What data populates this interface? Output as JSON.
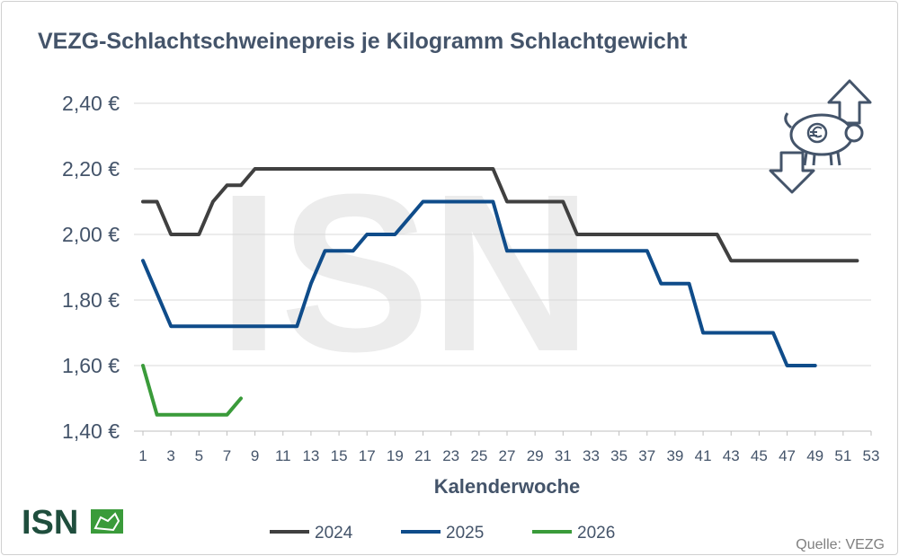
{
  "brand": {
    "logo_text": "ISN",
    "watermark_text": "ISN",
    "colors": {
      "logo": "#1f4e3d",
      "logo_green": "#3a9b3a"
    }
  },
  "icons": {
    "corner": "pig-euro-price-arrows-icon"
  },
  "source": "Quelle: VEZG",
  "chart_data": {
    "type": "line",
    "title": "VEZG-Schlachtschweinepreis je Kilogramm Schlachtgewicht",
    "xlabel": "Kalenderwoche",
    "ylabel": "",
    "xlim": [
      1,
      53
    ],
    "ylim": [
      1.4,
      2.4
    ],
    "x_ticks": [
      1,
      3,
      5,
      7,
      9,
      11,
      13,
      15,
      17,
      19,
      21,
      23,
      25,
      27,
      29,
      31,
      33,
      35,
      37,
      39,
      41,
      43,
      45,
      47,
      49,
      51,
      53
    ],
    "y_ticks": [
      1.4,
      1.6,
      1.8,
      2.0,
      2.2,
      2.4
    ],
    "y_tick_labels": [
      "1,40 €",
      "1,60 €",
      "1,80 €",
      "2,00 €",
      "2,20 €",
      "2,40 €"
    ],
    "grid": "horizontal",
    "legend_position": "bottom",
    "series": [
      {
        "name": "2024",
        "color": "#404040",
        "x": [
          1,
          2,
          3,
          4,
          5,
          6,
          7,
          8,
          9,
          26,
          27,
          31,
          32,
          42,
          43,
          52
        ],
        "y": [
          2.1,
          2.1,
          2.0,
          2.0,
          2.0,
          2.1,
          2.15,
          2.15,
          2.2,
          2.2,
          2.1,
          2.1,
          2.0,
          2.0,
          1.92,
          1.92
        ]
      },
      {
        "name": "2025",
        "color": "#0f4c8a",
        "x": [
          1,
          3,
          12,
          13,
          14,
          16,
          17,
          19,
          21,
          26,
          27,
          37,
          38,
          40,
          41,
          46,
          47,
          49
        ],
        "y": [
          1.92,
          1.72,
          1.72,
          1.85,
          1.95,
          1.95,
          2.0,
          2.0,
          2.1,
          2.1,
          1.95,
          1.95,
          1.85,
          1.85,
          1.7,
          1.7,
          1.6,
          1.6
        ]
      },
      {
        "name": "2026",
        "color": "#3a9b3a",
        "x": [
          1,
          2,
          7,
          8
        ],
        "y": [
          1.6,
          1.45,
          1.45,
          1.5
        ]
      }
    ]
  }
}
